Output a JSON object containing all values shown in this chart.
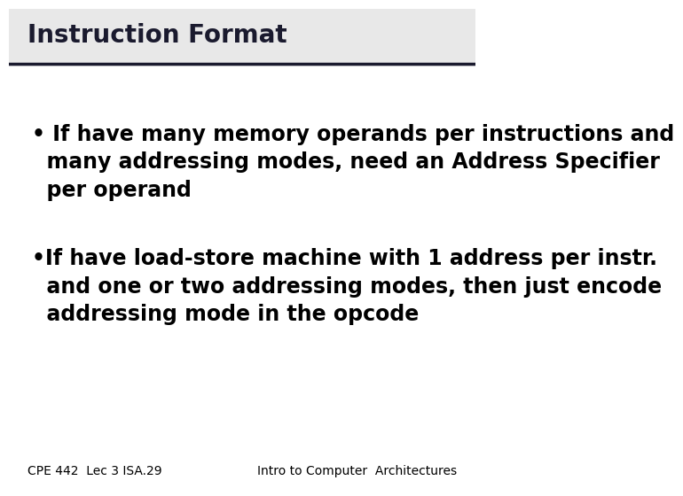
{
  "title": "Instruction Format",
  "title_fontsize": 20,
  "title_color": "#1a1a2e",
  "slide_bg": "#ffffff",
  "header_bg": "#e8e8e8",
  "header_line_color": "#1a1a2e",
  "bullet1_line1": "• If have many memory operands per instructions and",
  "bullet1_line2": "  many addressing modes, need an Address Specifier",
  "bullet1_line3": "  per operand",
  "bullet2_line1": "•If have load-store machine with 1 address per instr.",
  "bullet2_line2": "  and one or two addressing modes, then just encode",
  "bullet2_line3": "  addressing mode in the opcode",
  "bullet_fontsize": 17,
  "bullet_color": "#000000",
  "footer_left": "CPE 442  Lec 3 ISA.29",
  "footer_right": "Intro to Computer  Architectures",
  "footer_fontsize": 10,
  "footer_color": "#000000"
}
